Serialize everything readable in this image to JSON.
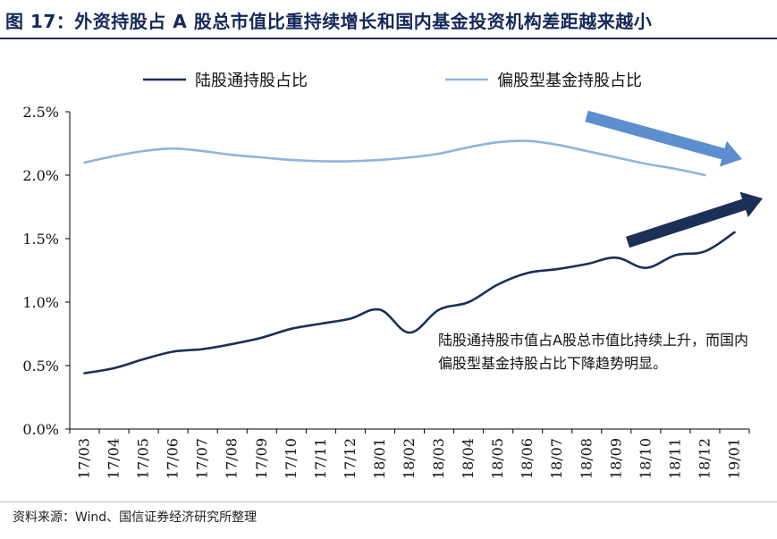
{
  "title": "图 17：外资持股占 A 股总市值比重持续增长和国内基金投资机构差距越来越小",
  "source": "资料来源：Wind、国信证券经济研究所整理",
  "annotation": "陆股通持股市值占A股总市值比持续上升，而国内偏股型基金持股占比下降趋势明显。",
  "colors": {
    "series1": "#1b2f57",
    "series2": "#8fb4dc",
    "arrow_down": "#5d8fcf",
    "arrow_up": "#1b2f57",
    "title": "#14285a"
  },
  "chart_data": {
    "type": "line",
    "categories": [
      "17/03",
      "17/04",
      "17/05",
      "17/06",
      "17/07",
      "17/08",
      "17/09",
      "17/10",
      "17/11",
      "17/12",
      "18/01",
      "18/02",
      "18/03",
      "18/04",
      "18/05",
      "18/06",
      "18/07",
      "18/08",
      "18/09",
      "18/10",
      "18/11",
      "18/12",
      "19/01"
    ],
    "ylim": [
      0,
      2.5
    ],
    "yticks": [
      "0.0%",
      "0.5%",
      "1.0%",
      "1.5%",
      "2.0%",
      "2.5%"
    ],
    "legend_position": "top",
    "series": [
      {
        "name": "陆股通持股占比",
        "values": [
          0.44,
          0.48,
          0.55,
          0.61,
          0.63,
          0.67,
          0.72,
          0.79,
          0.83,
          0.87,
          0.94,
          0.76,
          0.94,
          1.0,
          1.14,
          1.23,
          1.26,
          1.3,
          1.35,
          1.27,
          1.37,
          1.4,
          1.55
        ]
      },
      {
        "name": "偏股型基金持股占比",
        "values": [
          2.1,
          2.15,
          2.19,
          2.21,
          2.19,
          2.16,
          2.14,
          2.12,
          2.11,
          2.11,
          2.12,
          2.14,
          2.17,
          2.22,
          2.26,
          2.27,
          2.24,
          2.19,
          2.14,
          2.09,
          2.05,
          2.0,
          null
        ]
      }
    ]
  }
}
